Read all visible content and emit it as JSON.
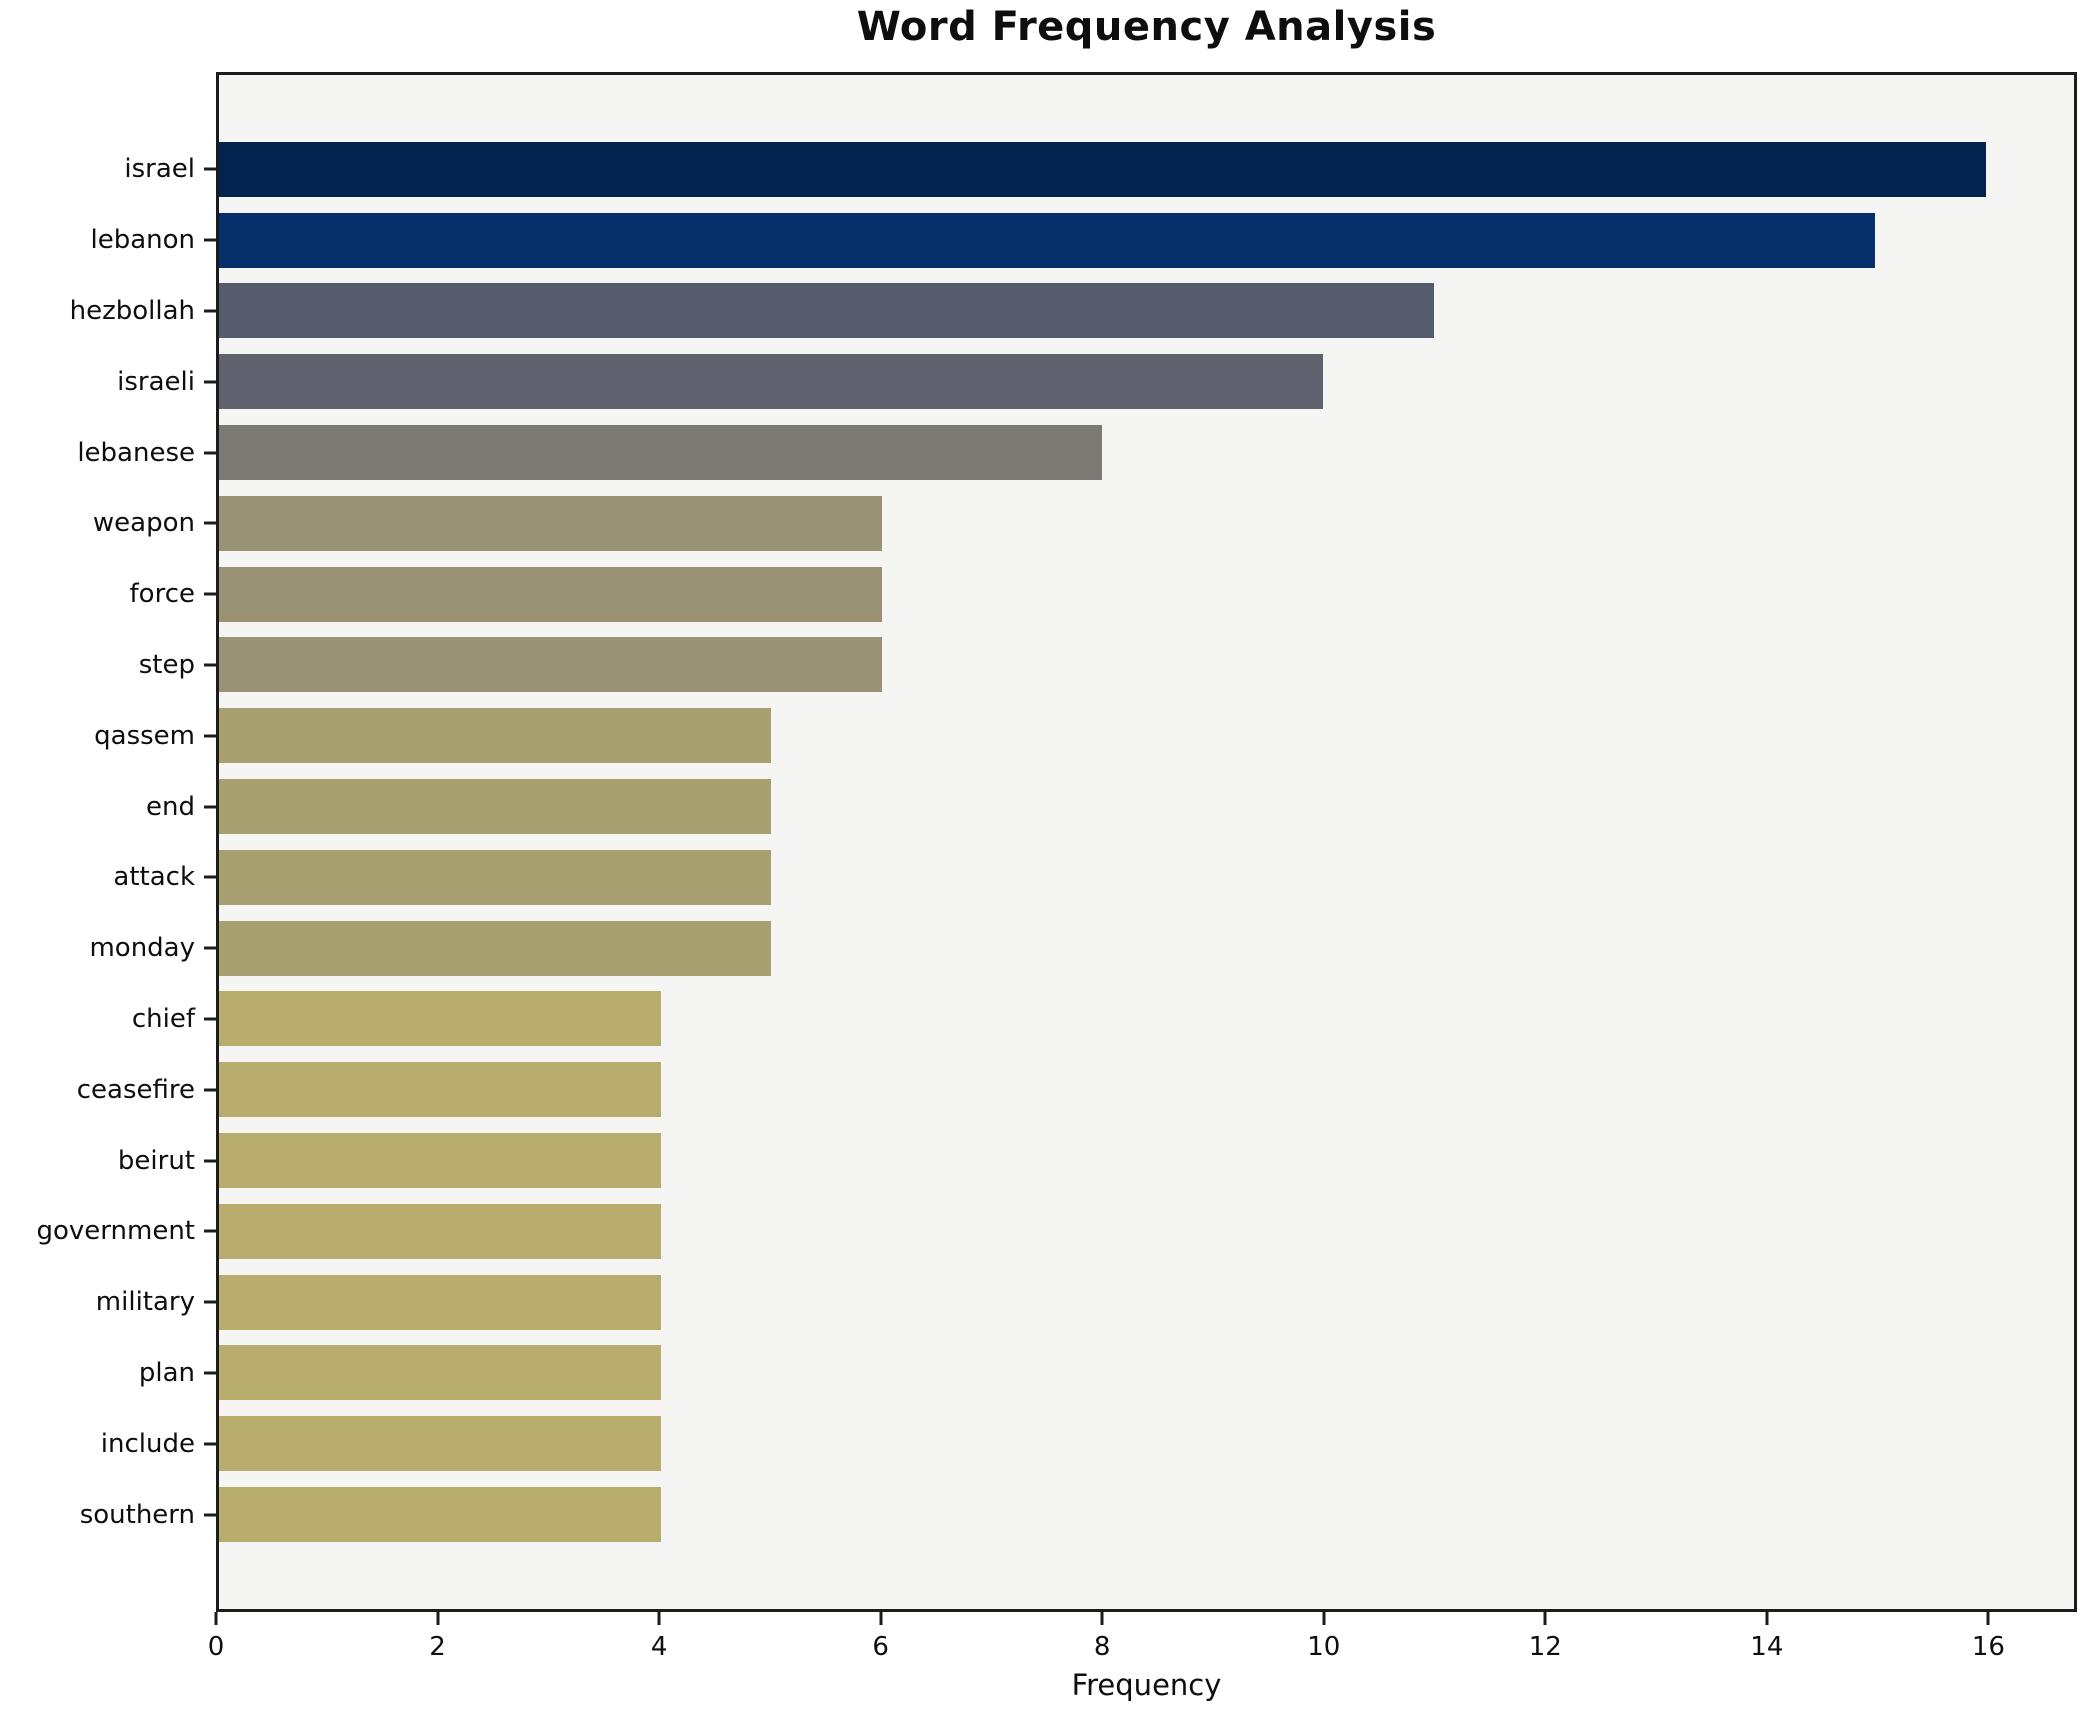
{
  "title": "Word Frequency Analysis",
  "xlabel": "Frequency",
  "chart_data": {
    "type": "bar",
    "orientation": "horizontal",
    "title": "Word Frequency Analysis",
    "xlabel": "Frequency",
    "ylabel": "",
    "categories": [
      "israel",
      "lebanon",
      "hezbollah",
      "israeli",
      "lebanese",
      "weapon",
      "force",
      "step",
      "qassem",
      "end",
      "attack",
      "monday",
      "chief",
      "ceasefire",
      "beirut",
      "government",
      "military",
      "plan",
      "include",
      "southern"
    ],
    "values": [
      16,
      15,
      11,
      10,
      8,
      6,
      6,
      6,
      5,
      5,
      5,
      5,
      4,
      4,
      4,
      4,
      4,
      4,
      4,
      4
    ],
    "bar_colors": [
      "#02234e",
      "#053069",
      "#555c6e",
      "#5f626e",
      "#7b7a73",
      "#9a9274",
      "#9a9274",
      "#9a9274",
      "#a9a071",
      "#a9a071",
      "#a9a071",
      "#a9a071",
      "#b8ad6c",
      "#b8ad6c",
      "#b8ad6c",
      "#b8ad6c",
      "#b8ad6c",
      "#b8ad6c",
      "#b8ad6c",
      "#b8ad6c"
    ],
    "x_ticks": [
      0,
      2,
      4,
      6,
      8,
      10,
      12,
      14,
      16
    ],
    "xlim": [
      0,
      16.8
    ],
    "grid": false,
    "legend": false,
    "plot_background": "#f5f5f3",
    "figure_background": "#ffffff",
    "axis_color": "#1c1c1c"
  }
}
